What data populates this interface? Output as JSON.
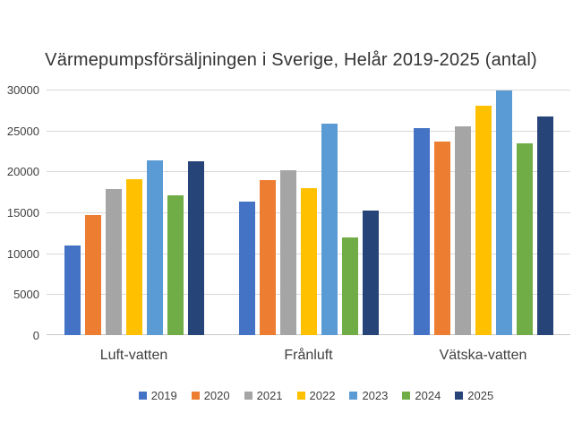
{
  "title": "Värmepumpsförsäljningen i Sverige, Helår 2019-2025 (antal)",
  "chart_data": {
    "type": "bar",
    "title": "Värmepumpsförsäljningen i Sverige, Helår 2019-2025 (antal)",
    "categories": [
      "Luft-vatten",
      "Frånluft",
      "Vätska-vatten"
    ],
    "series": [
      {
        "name": "2019",
        "color": "#4472C4",
        "values": [
          11000,
          16300,
          25300
        ]
      },
      {
        "name": "2020",
        "color": "#ED7D31",
        "values": [
          14700,
          18900,
          23700
        ]
      },
      {
        "name": "2021",
        "color": "#A5A5A5",
        "values": [
          17800,
          20100,
          25500
        ]
      },
      {
        "name": "2022",
        "color": "#FFC000",
        "values": [
          19100,
          18000,
          28000
        ]
      },
      {
        "name": "2023",
        "color": "#5B9BD5",
        "values": [
          21300,
          25800,
          29900
        ]
      },
      {
        "name": "2024",
        "color": "#70AD47",
        "values": [
          17100,
          11900,
          23400
        ]
      },
      {
        "name": "2025",
        "color": "#264478",
        "values": [
          21200,
          15200,
          26700
        ]
      }
    ],
    "xlabel": "",
    "ylabel": "",
    "ylim": [
      0,
      30000
    ],
    "yticks": [
      0,
      5000,
      10000,
      15000,
      20000,
      25000,
      30000
    ],
    "grid": true,
    "legend_position": "bottom"
  },
  "colors": {
    "background": "#FFFFFF",
    "gridline": "#D9D9D9",
    "text": "#404040",
    "title_text": "#333333"
  }
}
